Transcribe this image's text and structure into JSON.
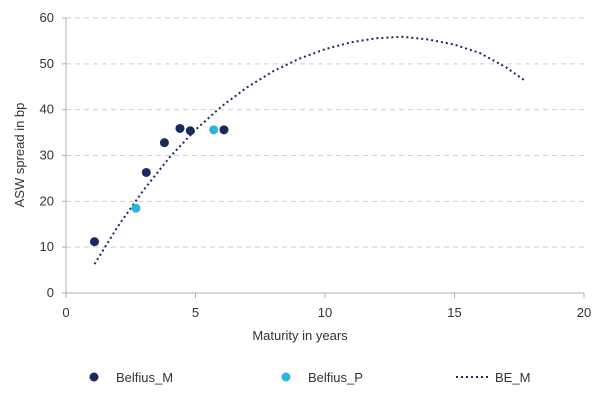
{
  "chart_data": {
    "type": "scatter",
    "title": "",
    "xlabel": "Maturity in years",
    "ylabel": "ASW spread in bp",
    "xlim": [
      0,
      20
    ],
    "ylim": [
      0,
      60
    ],
    "x_ticks": [
      "0",
      "5",
      "10",
      "15",
      "20"
    ],
    "y_ticks": [
      "0",
      "10",
      "20",
      "30",
      "40",
      "50",
      "60"
    ],
    "grid": "horizontal dashed",
    "legend_position": "bottom",
    "series": [
      {
        "name": "Belfius_M",
        "kind": "scatter",
        "color": "#1b2a5c",
        "points": [
          [
            1.1,
            11.2
          ],
          [
            3.1,
            26.3
          ],
          [
            3.8,
            32.8
          ],
          [
            4.4,
            35.9
          ],
          [
            4.8,
            35.4
          ],
          [
            6.1,
            35.6
          ]
        ]
      },
      {
        "name": "Belfius_P",
        "kind": "scatter",
        "color": "#29b5e0",
        "points": [
          [
            2.7,
            18.5
          ],
          [
            5.7,
            35.6
          ]
        ]
      },
      {
        "name": "BE_M",
        "kind": "line",
        "style": "dotted",
        "color": "#1b2a5c",
        "points": [
          [
            1.1,
            6.3
          ],
          [
            2,
            14.5
          ],
          [
            3,
            22.5
          ],
          [
            4,
            29.6
          ],
          [
            5,
            35.6
          ],
          [
            6,
            40.7
          ],
          [
            7,
            44.9
          ],
          [
            8,
            48.4
          ],
          [
            9,
            51.1
          ],
          [
            10,
            53.2
          ],
          [
            11,
            54.7
          ],
          [
            12,
            55.6
          ],
          [
            13,
            55.9
          ],
          [
            14,
            55.3
          ],
          [
            15,
            54.2
          ],
          [
            16,
            52.3
          ],
          [
            17,
            49.2
          ],
          [
            17.7,
            46.4
          ]
        ]
      }
    ]
  }
}
